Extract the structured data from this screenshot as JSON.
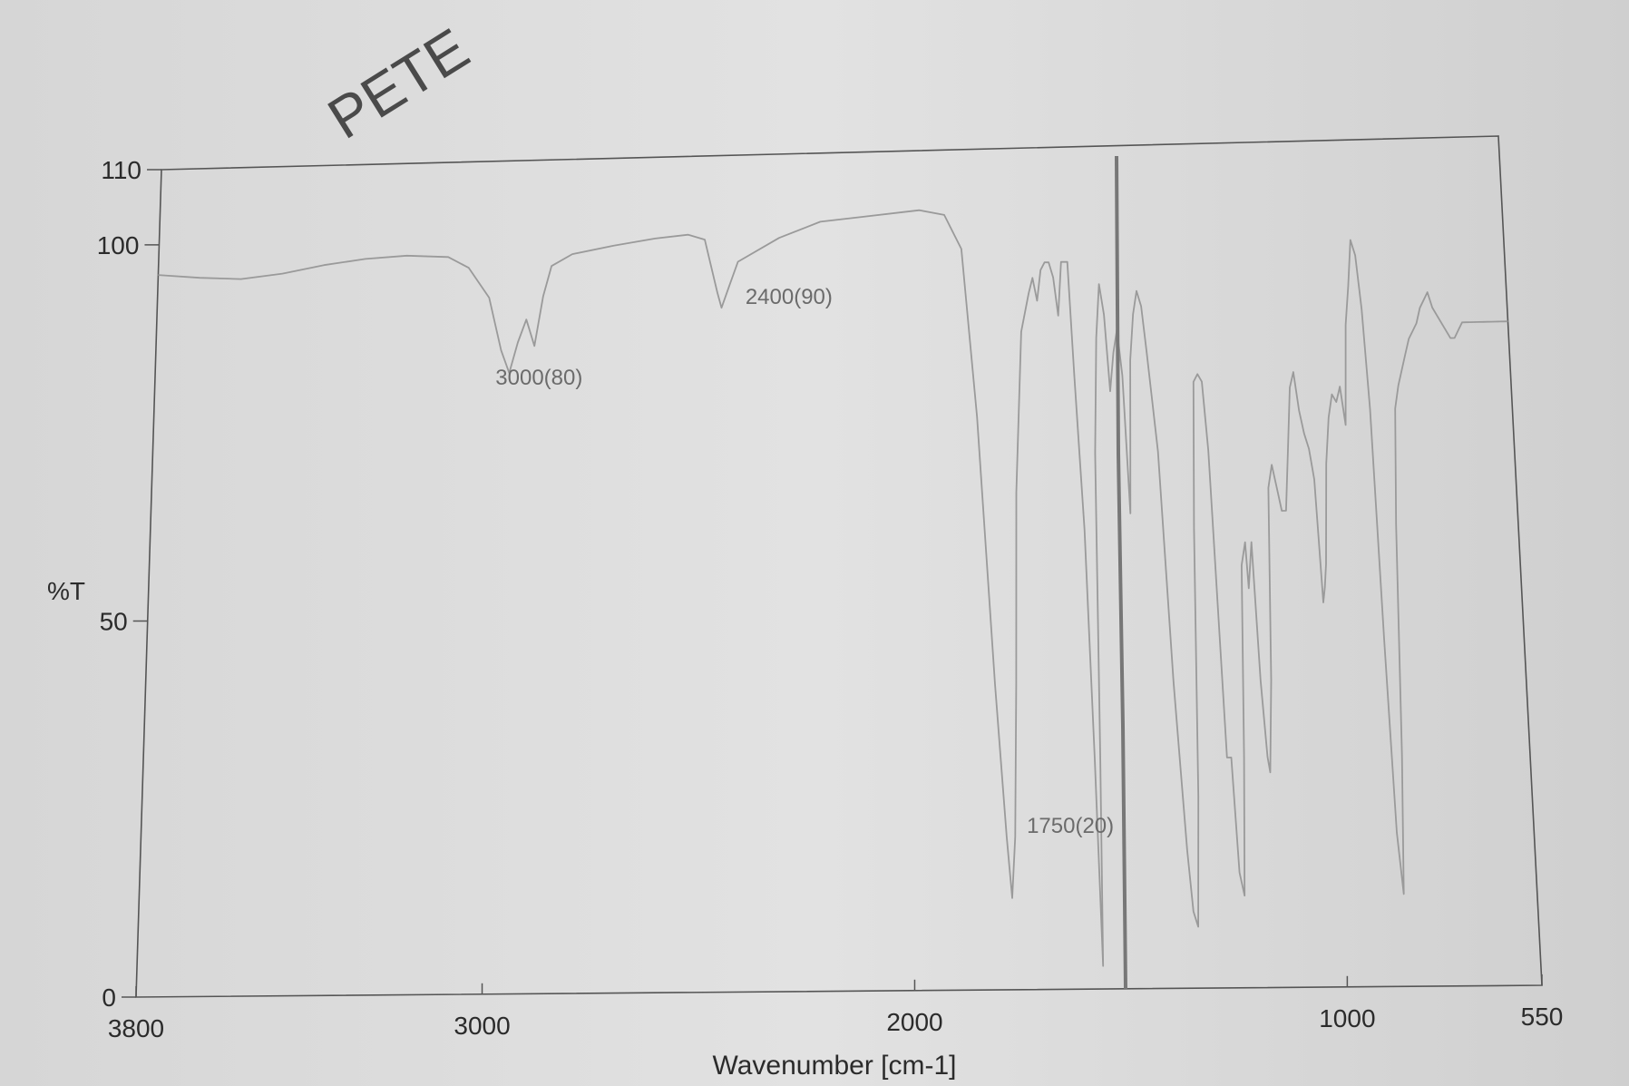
{
  "handwritten_title": "PETE",
  "chart_data": {
    "type": "line",
    "ylabel": "%T",
    "xlabel": "Wavenumber [cm-1]",
    "x_ticks": [
      3800,
      3000,
      2000,
      1000,
      550
    ],
    "y_ticks": [
      0,
      50,
      100,
      110
    ],
    "xlim": [
      3800,
      550
    ],
    "ylim": [
      0,
      110
    ],
    "x_reversed": true,
    "grid": false,
    "series": [
      {
        "points": [
          [
            3800,
            96
          ],
          [
            3700,
            95.5
          ],
          [
            3600,
            95.2
          ],
          [
            3500,
            95.8
          ],
          [
            3400,
            96.8
          ],
          [
            3300,
            97.5
          ],
          [
            3200,
            97.8
          ],
          [
            3100,
            97.5
          ],
          [
            3050,
            96
          ],
          [
            3000,
            92
          ],
          [
            2970,
            85
          ],
          [
            2950,
            82
          ],
          [
            2930,
            86
          ],
          [
            2910,
            89
          ],
          [
            2890,
            85.5
          ],
          [
            2870,
            92
          ],
          [
            2850,
            96
          ],
          [
            2800,
            97.5
          ],
          [
            2700,
            98.5
          ],
          [
            2600,
            99.3
          ],
          [
            2520,
            99.7
          ],
          [
            2480,
            99
          ],
          [
            2450,
            92
          ],
          [
            2440,
            90
          ],
          [
            2420,
            93
          ],
          [
            2400,
            96
          ],
          [
            2300,
            99
          ],
          [
            2200,
            101
          ],
          [
            2100,
            101.5
          ],
          [
            2000,
            102
          ],
          [
            1960,
            102.2
          ],
          [
            1900,
            101.5
          ],
          [
            1860,
            97
          ],
          [
            1830,
            75
          ],
          [
            1800,
            40
          ],
          [
            1780,
            20
          ],
          [
            1770,
            12
          ],
          [
            1760,
            20
          ],
          [
            1750,
            40
          ],
          [
            1740,
            65
          ],
          [
            1720,
            86
          ],
          [
            1700,
            91
          ],
          [
            1690,
            93
          ],
          [
            1680,
            90
          ],
          [
            1670,
            94
          ],
          [
            1660,
            95
          ],
          [
            1650,
            95
          ],
          [
            1640,
            93
          ],
          [
            1630,
            88
          ],
          [
            1620,
            95
          ],
          [
            1605,
            95
          ],
          [
            1595,
            80
          ],
          [
            1580,
            60
          ],
          [
            1570,
            30
          ],
          [
            1563,
            3
          ],
          [
            1557,
            30
          ],
          [
            1550,
            70
          ],
          [
            1540,
            85
          ],
          [
            1530,
            92
          ],
          [
            1520,
            88
          ],
          [
            1510,
            78
          ],
          [
            1500,
            83
          ],
          [
            1490,
            86
          ],
          [
            1480,
            80
          ],
          [
            1470,
            62
          ],
          [
            1460,
            82
          ],
          [
            1450,
            88
          ],
          [
            1440,
            91
          ],
          [
            1430,
            89
          ],
          [
            1420,
            83
          ],
          [
            1400,
            70
          ],
          [
            1380,
            40
          ],
          [
            1360,
            18
          ],
          [
            1350,
            10
          ],
          [
            1340,
            8
          ],
          [
            1330,
            25
          ],
          [
            1320,
            60
          ],
          [
            1310,
            79
          ],
          [
            1300,
            80
          ],
          [
            1290,
            79
          ],
          [
            1280,
            70
          ],
          [
            1270,
            50
          ],
          [
            1260,
            30
          ],
          [
            1250,
            30
          ],
          [
            1240,
            15
          ],
          [
            1230,
            12
          ],
          [
            1220,
            30
          ],
          [
            1210,
            55
          ],
          [
            1200,
            58
          ],
          [
            1195,
            52
          ],
          [
            1185,
            58
          ],
          [
            1175,
            40
          ],
          [
            1165,
            30
          ],
          [
            1160,
            28
          ],
          [
            1150,
            40
          ],
          [
            1140,
            65
          ],
          [
            1130,
            68
          ],
          [
            1120,
            65
          ],
          [
            1110,
            62
          ],
          [
            1100,
            62
          ],
          [
            1090,
            70
          ],
          [
            1080,
            78
          ],
          [
            1070,
            80
          ],
          [
            1060,
            75
          ],
          [
            1050,
            72
          ],
          [
            1040,
            70
          ],
          [
            1030,
            66
          ],
          [
            1020,
            50
          ],
          [
            1015,
            52
          ],
          [
            1010,
            55
          ],
          [
            1000,
            68
          ],
          [
            990,
            74
          ],
          [
            980,
            77
          ],
          [
            970,
            76
          ],
          [
            960,
            78
          ],
          [
            950,
            73
          ],
          [
            940,
            86
          ],
          [
            930,
            91
          ],
          [
            920,
            97
          ],
          [
            910,
            95
          ],
          [
            900,
            88
          ],
          [
            890,
            75
          ],
          [
            880,
            45
          ],
          [
            870,
            20
          ],
          [
            860,
            12
          ],
          [
            850,
            30
          ],
          [
            840,
            60
          ],
          [
            830,
            75
          ],
          [
            820,
            78
          ],
          [
            810,
            80
          ],
          [
            800,
            82
          ],
          [
            790,
            84
          ],
          [
            780,
            85
          ],
          [
            770,
            86
          ],
          [
            760,
            88
          ],
          [
            750,
            89
          ],
          [
            740,
            90
          ],
          [
            730,
            88
          ],
          [
            720,
            87
          ],
          [
            710,
            86
          ],
          [
            700,
            85
          ],
          [
            690,
            84
          ],
          [
            680,
            84
          ],
          [
            670,
            85
          ],
          [
            660,
            86
          ],
          [
            650,
            86
          ],
          [
            640,
            86
          ],
          [
            630,
            86
          ],
          [
            620,
            86
          ],
          [
            610,
            86
          ],
          [
            600,
            86
          ],
          [
            590,
            86
          ],
          [
            580,
            86
          ],
          [
            570,
            86
          ],
          [
            560,
            86
          ],
          [
            550,
            86
          ]
        ]
      }
    ],
    "annotations": [
      {
        "text": "3000(80)",
        "x": 3000,
        "y": 80
      },
      {
        "text": "2400(90)",
        "x": 2400,
        "y": 90
      },
      {
        "text": "1750(20)",
        "x": 1750,
        "y": 20
      }
    ]
  },
  "colors": {
    "paper": "#dedede",
    "axis": "#555555",
    "trace": "#9a9a9a",
    "pencil": "#6b6b6b",
    "text": "#2b2b2b"
  }
}
